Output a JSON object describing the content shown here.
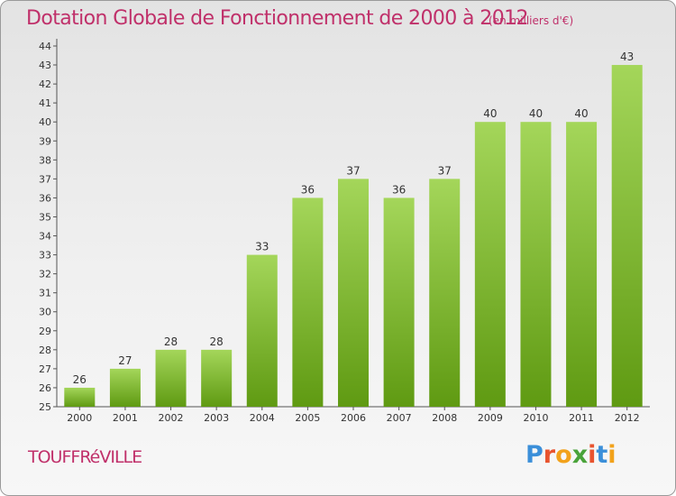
{
  "header": {
    "title": "Dotation Globale de Fonctionnement de 2000 à 2012",
    "subtitle": "(en milliers d'€)"
  },
  "footer": {
    "town": "TOUFFRéVILLE",
    "logo_letters": [
      "P",
      "r",
      "o",
      "x",
      "i",
      "t",
      "i"
    ],
    "logo_colors": [
      "#3b8fd9",
      "#e8542f",
      "#f2a21b",
      "#4aa33a",
      "#e8542f",
      "#3b8fd9",
      "#f2a21b"
    ]
  },
  "colors": {
    "accent": "#c0306a",
    "bar_top": "#a4d65a",
    "bar_bottom": "#5f9a12"
  },
  "chart_data": {
    "type": "bar",
    "title": "Dotation Globale de Fonctionnement de 2000 à 2012",
    "subtitle": "(en milliers d'€)",
    "xlabel": "",
    "ylabel": "",
    "categories": [
      "2000",
      "2001",
      "2002",
      "2003",
      "2004",
      "2005",
      "2006",
      "2007",
      "2008",
      "2009",
      "2010",
      "2011",
      "2012"
    ],
    "values": [
      26,
      27,
      28,
      28,
      33,
      36,
      37,
      36,
      37,
      40,
      40,
      40,
      43
    ],
    "ylim": [
      25,
      44
    ],
    "yticks": [
      25,
      26,
      27,
      28,
      29,
      30,
      31,
      32,
      33,
      34,
      35,
      36,
      37,
      38,
      39,
      40,
      41,
      42,
      43,
      44
    ],
    "grid": false,
    "data_labels": true
  }
}
